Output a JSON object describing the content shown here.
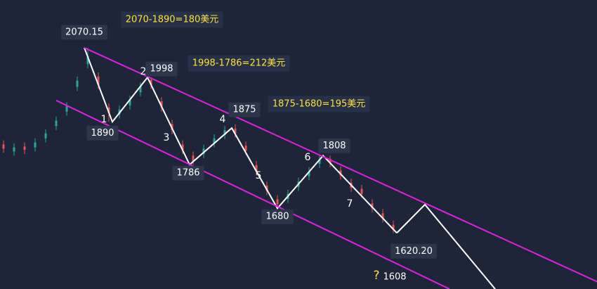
{
  "chart_data": {
    "type": "candlestick",
    "xlim": [
      0,
      170
    ],
    "ylim": [
      1484,
      2186
    ],
    "candles": {
      "up_color": "#26a69a",
      "down_color": "#ef5350",
      "x": [
        1,
        4,
        7,
        10,
        13,
        16,
        19,
        22,
        25,
        28,
        31,
        34,
        37,
        40,
        43,
        46,
        49,
        52,
        55,
        58,
        61,
        64,
        67,
        70,
        73,
        76,
        79,
        82,
        85,
        88,
        91,
        94,
        97,
        100,
        103,
        106,
        109,
        112
      ],
      "open": [
        1835,
        1818,
        1830,
        1828,
        1850,
        1880,
        1915,
        1975,
        2030,
        2000,
        1925,
        1908,
        1930,
        1962,
        1992,
        1940,
        1885,
        1835,
        1808,
        1812,
        1838,
        1858,
        1874,
        1832,
        1785,
        1735,
        1702,
        1703,
        1732,
        1758,
        1788,
        1800,
        1772,
        1742,
        1727,
        1692,
        1668,
        1640
      ],
      "close": [
        1825,
        1828,
        1822,
        1840,
        1862,
        1893,
        1928,
        1990,
        2050,
        1980,
        1912,
        1920,
        1944,
        1976,
        1980,
        1925,
        1870,
        1822,
        1795,
        1825,
        1850,
        1870,
        1862,
        1820,
        1770,
        1722,
        1690,
        1715,
        1745,
        1770,
        1800,
        1790,
        1760,
        1730,
        1715,
        1680,
        1655,
        1628
      ],
      "high": [
        1845,
        1838,
        1840,
        1850,
        1872,
        1903,
        1938,
        2000,
        2070,
        2010,
        1935,
        1930,
        1954,
        1986,
        1998,
        1950,
        1895,
        1845,
        1818,
        1835,
        1860,
        1880,
        1884,
        1842,
        1795,
        1745,
        1712,
        1725,
        1755,
        1780,
        1810,
        1808,
        1782,
        1752,
        1737,
        1702,
        1678,
        1650
      ],
      "low": [
        1815,
        1808,
        1812,
        1818,
        1840,
        1870,
        1905,
        1965,
        2020,
        1970,
        1890,
        1898,
        1920,
        1952,
        1970,
        1915,
        1860,
        1812,
        1786,
        1802,
        1828,
        1848,
        1852,
        1810,
        1760,
        1712,
        1680,
        1693,
        1722,
        1748,
        1778,
        1780,
        1750,
        1720,
        1705,
        1670,
        1645,
        1620
      ]
    },
    "series": [
      {
        "color": "#ffffff",
        "x": [
          24,
          32,
          42,
          54,
          66,
          79,
          92,
          113
        ],
        "values": [
          2070.15,
          1890,
          1998,
          1786,
          1875,
          1680,
          1808,
          1620.2
        ],
        "value_labels": [
          "2070.15",
          "1890",
          "1998",
          "1786",
          "1875",
          "1680",
          "1808",
          "1620.20"
        ]
      },
      {
        "color": "#ffffff",
        "x": [
          113,
          121,
          141
        ],
        "values": [
          1620.2,
          1689,
          1484
        ]
      },
      {
        "color": "#e020e0",
        "x": [
          24,
          170
        ],
        "values": [
          2070,
          1502
        ]
      },
      {
        "color": "#e020e0",
        "x": [
          16,
          128
        ],
        "values": [
          1942,
          1484
        ]
      }
    ],
    "wave_labels": [
      "1",
      "2",
      "3",
      "4",
      "5",
      "6",
      "7"
    ],
    "annotations": [
      "2070-1890=180美元",
      "1998-1786=212美元",
      "1875-1680=195美元",
      "?",
      "1608"
    ]
  }
}
